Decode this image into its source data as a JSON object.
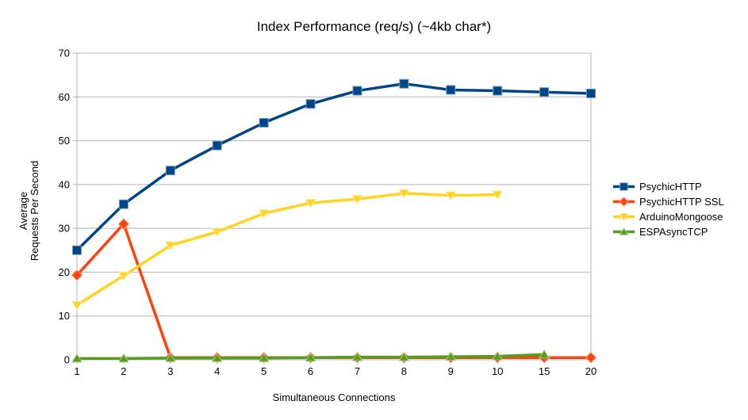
{
  "chart_data": {
    "type": "line",
    "title": "Index Performance (req/s) (~4kb char*)",
    "xlabel": "Simultaneous Connections",
    "ylabel": "Average\nRequests Per Second",
    "categories": [
      "1",
      "2",
      "3",
      "4",
      "5",
      "6",
      "7",
      "8",
      "9",
      "10",
      "15",
      "20"
    ],
    "yticks": [
      0,
      10,
      20,
      30,
      40,
      50,
      60,
      70
    ],
    "ylim": [
      0,
      70
    ],
    "grid": true,
    "legend_position": "right",
    "style": {
      "grid_color": "#b3b3b3",
      "text_color": "#000000",
      "background": "#ffffff"
    },
    "series": [
      {
        "name": "PsychicHTTP",
        "color": "#004586",
        "marker": "square",
        "values": [
          25.0,
          35.5,
          43.2,
          48.9,
          54.1,
          58.4,
          61.4,
          63.0,
          61.6,
          61.4,
          61.1,
          60.8
        ]
      },
      {
        "name": "PsychicHTTP SSL",
        "color": "#FF420E",
        "marker": "diamond",
        "values": [
          19.3,
          31.0,
          0.5,
          0.5,
          0.5,
          0.5,
          0.5,
          0.5,
          0.5,
          0.5,
          0.5,
          0.5
        ]
      },
      {
        "name": "ArduinoMongoose",
        "color": "#FFD320",
        "marker": "triangle-down",
        "values": [
          12.5,
          19.2,
          26.1,
          29.2,
          33.4,
          35.8,
          36.7,
          38.0,
          37.5,
          37.7,
          null,
          null
        ]
      },
      {
        "name": "ESPAsyncTCP",
        "color": "#579D1C",
        "marker": "triangle-up",
        "values": [
          0.3,
          0.3,
          0.4,
          0.4,
          0.4,
          0.5,
          0.6,
          0.6,
          0.7,
          0.8,
          1.2,
          null
        ]
      }
    ]
  }
}
